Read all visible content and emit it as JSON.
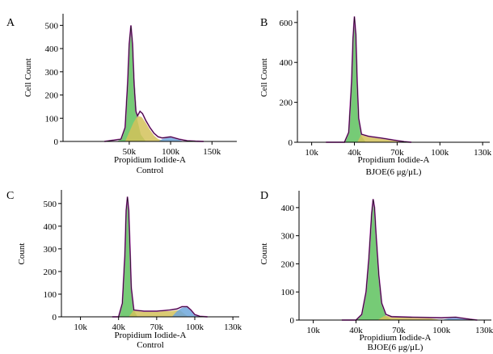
{
  "chart_data": [
    {
      "type": "area",
      "panel": "A",
      "xlabel": "Propidium Iodide-A",
      "caption": "Control",
      "ylabel": "Cell Count",
      "xlim": [
        -30000,
        180000
      ],
      "ylim": [
        0,
        550
      ],
      "xticks": [
        {
          "value": 50000,
          "label": "50k"
        },
        {
          "value": 100000,
          "label": "100k"
        },
        {
          "value": 150000,
          "label": "150k"
        }
      ],
      "yticks": [
        {
          "value": 0,
          "label": "0"
        },
        {
          "value": 100,
          "label": "100"
        },
        {
          "value": 200,
          "label": "200"
        },
        {
          "value": 300,
          "label": "300"
        },
        {
          "value": 400,
          "label": "400"
        },
        {
          "value": 500,
          "label": "500"
        }
      ],
      "series": [
        {
          "x": [
            35000,
            40000,
            45000,
            48000,
            50000,
            52000,
            54000,
            56000,
            58000,
            60000,
            64000,
            70000
          ],
          "y": [
            0,
            10,
            60,
            250,
            420,
            480,
            430,
            300,
            180,
            90,
            30,
            0
          ],
          "color": "#5ec25e"
        },
        {
          "x": [
            45000,
            55000,
            60000,
            65000,
            70000,
            75000,
            80000,
            85000,
            90000,
            95000
          ],
          "y": [
            0,
            80,
            110,
            105,
            80,
            50,
            25,
            10,
            5,
            0
          ],
          "color": "#d4c25a"
        },
        {
          "x": [
            85000,
            90000,
            95000,
            100000,
            105000,
            110000,
            115000
          ],
          "y": [
            0,
            10,
            15,
            20,
            15,
            8,
            0
          ],
          "color": "#6fa8dc"
        }
      ],
      "outline": {
        "x": [
          20000,
          40000,
          45000,
          48000,
          50000,
          52000,
          54000,
          56000,
          58000,
          60000,
          63000,
          66000,
          70000,
          75000,
          80000,
          85000,
          90000,
          100000,
          110000,
          120000,
          130000,
          140000
        ],
        "y": [
          0,
          10,
          60,
          250,
          420,
          500,
          420,
          240,
          130,
          110,
          130,
          120,
          90,
          60,
          35,
          20,
          15,
          20,
          10,
          3,
          1,
          0
        ]
      }
    },
    {
      "type": "area",
      "panel": "B",
      "xlabel": "Propidium Iodide-A",
      "caption": "BJOE(6 μg/μL)",
      "ylabel": "Cell Count",
      "xlim": [
        0,
        135000
      ],
      "ylim": [
        0,
        660
      ],
      "xticks": [
        {
          "value": 10000,
          "label": "10k"
        },
        {
          "value": 40000,
          "label": "40k"
        },
        {
          "value": 70000,
          "label": "70k"
        },
        {
          "value": 100000,
          "label": "100k"
        },
        {
          "value": 130000,
          "label": "130k"
        }
      ],
      "yticks": [
        {
          "value": 0,
          "label": "0"
        },
        {
          "value": 200,
          "label": "200"
        },
        {
          "value": 400,
          "label": "400"
        },
        {
          "value": 600,
          "label": "600"
        }
      ],
      "series": [
        {
          "x": [
            33000,
            36000,
            38000,
            39000,
            40000,
            41000,
            42000,
            43000,
            45000,
            48000
          ],
          "y": [
            0,
            50,
            300,
            520,
            630,
            540,
            300,
            120,
            30,
            0
          ],
          "color": "#5ec25e"
        },
        {
          "x": [
            42000,
            45000,
            50000,
            55000,
            60000,
            65000,
            70000,
            75000
          ],
          "y": [
            0,
            40,
            30,
            25,
            20,
            15,
            8,
            0
          ],
          "color": "#d4c25a"
        }
      ],
      "outline": {
        "x": [
          20000,
          33000,
          36000,
          38000,
          39000,
          40000,
          41000,
          42000,
          43000,
          45000,
          50000,
          60000,
          70000,
          75000,
          80000
        ],
        "y": [
          0,
          0,
          50,
          300,
          520,
          630,
          540,
          300,
          120,
          40,
          30,
          20,
          8,
          3,
          0
        ]
      }
    },
    {
      "type": "area",
      "panel": "C",
      "xlabel": "Propidium Iodide-A",
      "caption": "Control",
      "ylabel": "Count",
      "xlim": [
        -5000,
        135000
      ],
      "ylim": [
        0,
        560
      ],
      "xticks": [
        {
          "value": 10000,
          "label": "10k"
        },
        {
          "value": 40000,
          "label": "40k"
        },
        {
          "value": 70000,
          "label": "70k"
        },
        {
          "value": 100000,
          "label": "100k"
        },
        {
          "value": 130000,
          "label": "130k"
        }
      ],
      "yticks": [
        {
          "value": 0,
          "label": "0"
        },
        {
          "value": 100,
          "label": "100"
        },
        {
          "value": 200,
          "label": "200"
        },
        {
          "value": 300,
          "label": "300"
        },
        {
          "value": 400,
          "label": "400"
        },
        {
          "value": 500,
          "label": "500"
        }
      ],
      "series": [
        {
          "x": [
            40000,
            43000,
            45000,
            46000,
            47000,
            48000,
            49000,
            50000,
            52000,
            55000
          ],
          "y": [
            0,
            60,
            280,
            470,
            530,
            470,
            300,
            130,
            30,
            0
          ],
          "color": "#5ec25e"
        },
        {
          "x": [
            48000,
            52000,
            60000,
            70000,
            80000,
            88000,
            95000
          ],
          "y": [
            0,
            30,
            25,
            25,
            25,
            30,
            0
          ],
          "color": "#d4c25a"
        },
        {
          "x": [
            82000,
            86000,
            90000,
            94000,
            97000,
            100000,
            104000
          ],
          "y": [
            0,
            25,
            40,
            45,
            30,
            10,
            0
          ],
          "color": "#6fa8dc"
        }
      ],
      "outline": {
        "x": [
          35000,
          40000,
          43000,
          45000,
          46000,
          47000,
          48000,
          49000,
          50000,
          52000,
          60000,
          70000,
          80000,
          86000,
          90000,
          94000,
          97000,
          100000,
          104000,
          110000
        ],
        "y": [
          0,
          0,
          60,
          280,
          470,
          530,
          470,
          300,
          130,
          30,
          25,
          25,
          30,
          35,
          45,
          45,
          30,
          10,
          2,
          0
        ]
      }
    },
    {
      "type": "area",
      "panel": "D",
      "xlabel": "Propidium Iodide-A",
      "caption": "BJOE(6 μg/μL)",
      "ylabel": "Count",
      "xlim": [
        0,
        135000
      ],
      "ylim": [
        0,
        460
      ],
      "xticks": [
        {
          "value": 10000,
          "label": "10k"
        },
        {
          "value": 40000,
          "label": "40k"
        },
        {
          "value": 70000,
          "label": "70k"
        },
        {
          "value": 100000,
          "label": "100k"
        },
        {
          "value": 130000,
          "label": "130k"
        }
      ],
      "yticks": [
        {
          "value": 0,
          "label": "0"
        },
        {
          "value": 100,
          "label": "100"
        },
        {
          "value": 200,
          "label": "200"
        },
        {
          "value": 300,
          "label": "300"
        },
        {
          "value": 400,
          "label": "400"
        }
      ],
      "series": [
        {
          "x": [
            40000,
            44000,
            47000,
            49000,
            51000,
            52000,
            53000,
            54000,
            56000,
            58000,
            61000,
            65000
          ],
          "y": [
            0,
            20,
            100,
            220,
            380,
            430,
            400,
            310,
            160,
            60,
            15,
            0
          ],
          "color": "#5ec25e"
        },
        {
          "x": [
            55000,
            60000,
            70000,
            80000,
            90000,
            100000
          ],
          "y": [
            0,
            15,
            12,
            10,
            8,
            0
          ],
          "color": "#d4c25a"
        },
        {
          "x": [
            100000,
            105000,
            110000,
            115000,
            120000
          ],
          "y": [
            0,
            6,
            10,
            6,
            0
          ],
          "color": "#6fa8dc"
        }
      ],
      "outline": {
        "x": [
          30000,
          40000,
          44000,
          47000,
          49000,
          51000,
          52000,
          53000,
          54000,
          56000,
          58000,
          61000,
          65000,
          80000,
          100000,
          110000,
          120000,
          125000
        ],
        "y": [
          0,
          0,
          20,
          100,
          220,
          380,
          430,
          400,
          310,
          160,
          60,
          20,
          12,
          10,
          8,
          10,
          3,
          0
        ]
      }
    }
  ]
}
